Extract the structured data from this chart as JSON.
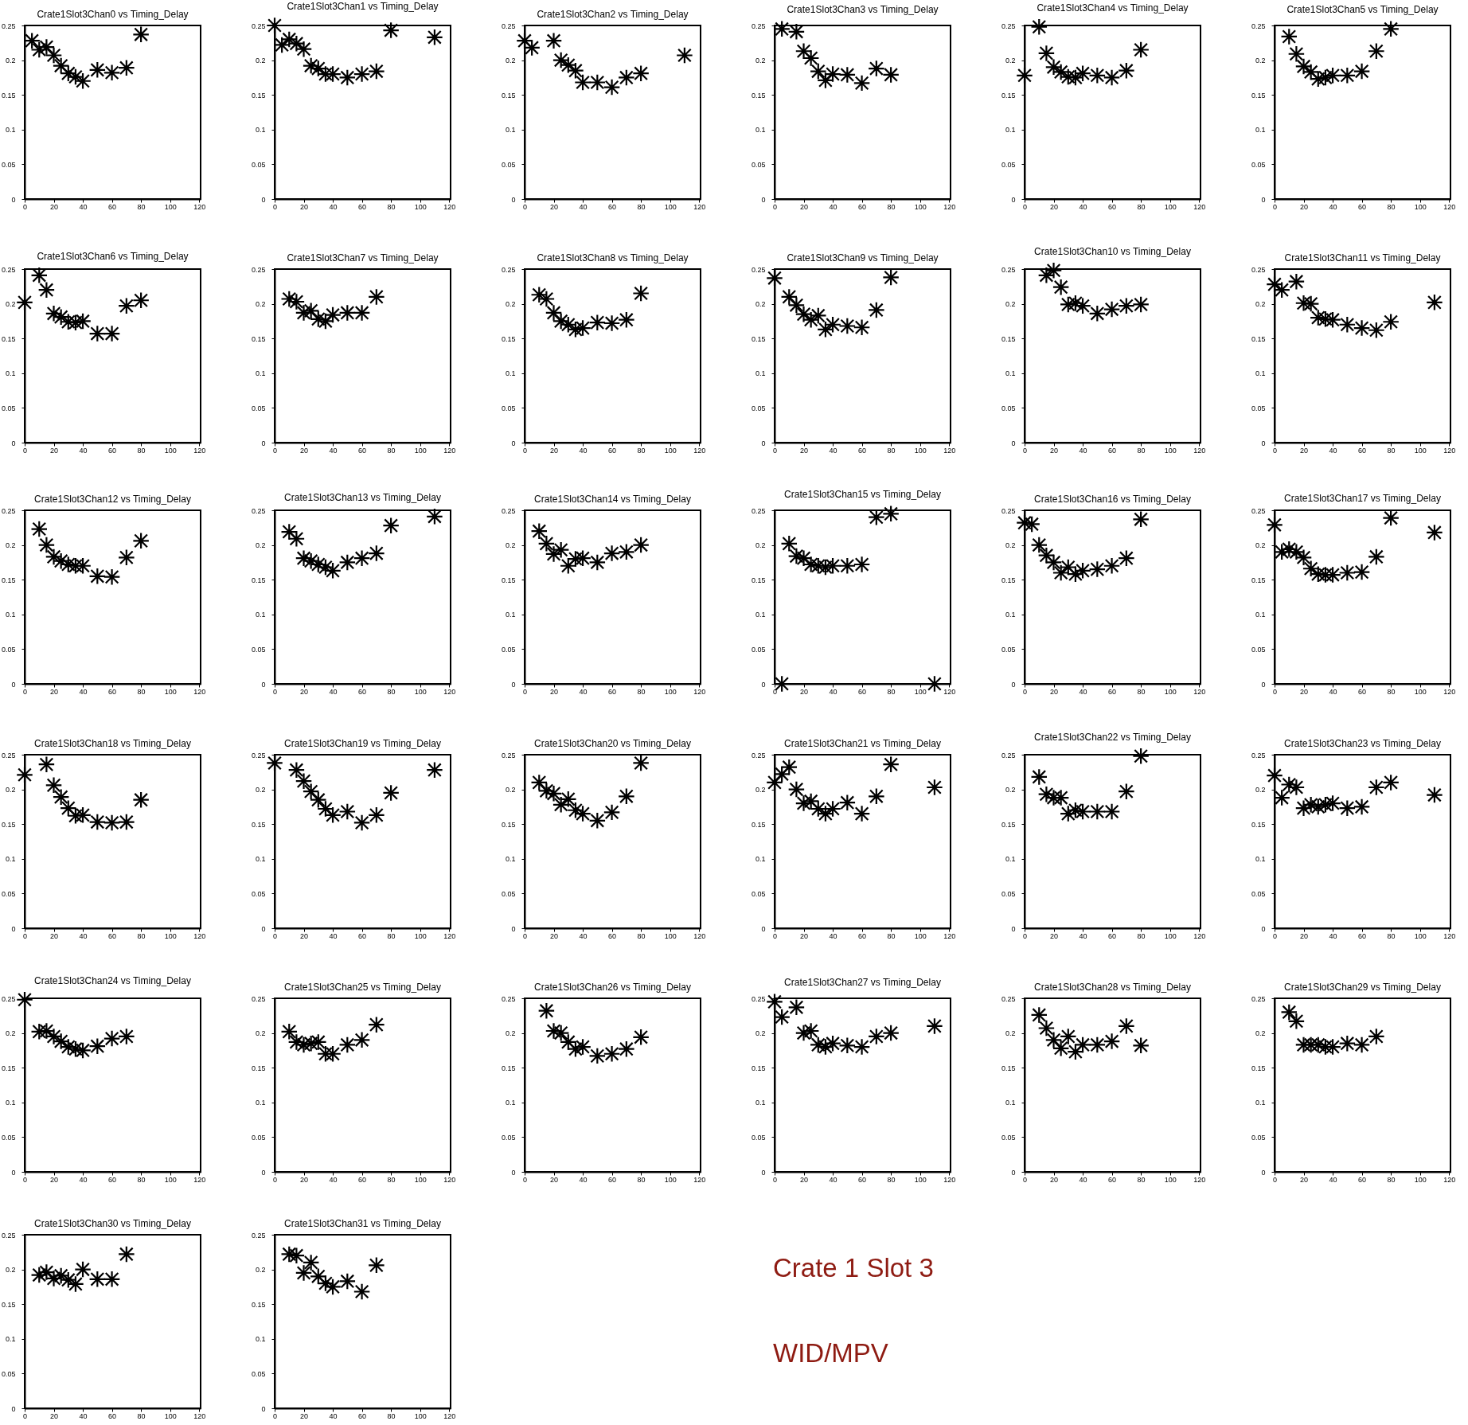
{
  "chart_data": [
    {
      "type": "scatter",
      "title": "Crate1Slot3Chan0 vs Timing_Delay",
      "x": [
        5,
        10,
        15,
        20,
        25,
        30,
        35,
        40,
        50,
        60,
        70,
        80
      ],
      "values": [
        0.228,
        0.215,
        0.219,
        0.207,
        0.192,
        0.181,
        0.176,
        0.17,
        0.186,
        0.182,
        0.189,
        0.237
      ],
      "color": "#000000",
      "marker": "cross",
      "xlim": [
        0,
        121
      ],
      "ylim": [
        0,
        0.25
      ],
      "xticks": [
        0,
        20,
        40,
        60,
        80,
        100,
        120
      ],
      "yticks": [
        0,
        0.05,
        0.1,
        0.15,
        0.2,
        0.25
      ]
    },
    {
      "type": "scatter",
      "title": "Crate1Slot3Chan1 vs Timing_Delay",
      "x": [
        0,
        5,
        10,
        15,
        20,
        25,
        30,
        35,
        40,
        50,
        60,
        70,
        80,
        110
      ],
      "values": [
        0.25,
        0.222,
        0.23,
        0.224,
        0.216,
        0.192,
        0.188,
        0.18,
        0.18,
        0.175,
        0.18,
        0.184,
        0.243,
        0.233
      ],
      "color": "#000000",
      "marker": "cross",
      "xlim": [
        0,
        121
      ],
      "ylim": [
        0,
        0.25
      ],
      "xticks": [
        0,
        20,
        40,
        60,
        80,
        100,
        120
      ],
      "yticks": [
        0,
        0.05,
        0.1,
        0.15,
        0.2,
        0.25
      ]
    },
    {
      "type": "scatter",
      "title": "Crate1Slot3Chan2 vs Timing_Delay",
      "x": [
        0,
        5,
        20,
        25,
        30,
        35,
        40,
        50,
        60,
        70,
        80,
        110
      ],
      "values": [
        0.228,
        0.218,
        0.228,
        0.2,
        0.193,
        0.185,
        0.168,
        0.168,
        0.161,
        0.175,
        0.181,
        0.207
      ],
      "color": "#000000",
      "marker": "cross",
      "xlim": [
        0,
        121
      ],
      "ylim": [
        0,
        0.25
      ],
      "xticks": [
        0,
        20,
        40,
        60,
        80,
        100,
        120
      ],
      "yticks": [
        0,
        0.05,
        0.1,
        0.15,
        0.2,
        0.25
      ]
    },
    {
      "type": "scatter",
      "title": "Crate1Slot3Chan3 vs Timing_Delay",
      "x": [
        5,
        15,
        20,
        25,
        30,
        35,
        40,
        50,
        60,
        70,
        80
      ],
      "values": [
        0.245,
        0.241,
        0.213,
        0.203,
        0.184,
        0.171,
        0.18,
        0.179,
        0.167,
        0.188,
        0.179
      ],
      "color": "#000000",
      "marker": "cross",
      "xlim": [
        0,
        121
      ],
      "ylim": [
        0,
        0.25
      ],
      "xticks": [
        0,
        20,
        40,
        60,
        80,
        100,
        120
      ],
      "yticks": [
        0,
        0.05,
        0.1,
        0.15,
        0.2,
        0.25
      ]
    },
    {
      "type": "scatter",
      "title": "Crate1Slot3Chan4 vs Timing_Delay",
      "x": [
        0,
        10,
        15,
        20,
        25,
        30,
        35,
        40,
        50,
        60,
        70,
        80
      ],
      "values": [
        0.178,
        0.248,
        0.21,
        0.19,
        0.183,
        0.176,
        0.175,
        0.181,
        0.178,
        0.175,
        0.185,
        0.215
      ],
      "color": "#000000",
      "marker": "cross",
      "xlim": [
        0,
        121
      ],
      "ylim": [
        0,
        0.25
      ],
      "xticks": [
        0,
        20,
        40,
        60,
        80,
        100,
        120
      ],
      "yticks": [
        0,
        0.05,
        0.1,
        0.15,
        0.2,
        0.25
      ]
    },
    {
      "type": "scatter",
      "title": "Crate1Slot3Chan5 vs Timing_Delay",
      "x": [
        10,
        15,
        20,
        25,
        30,
        35,
        40,
        50,
        60,
        70,
        80
      ],
      "values": [
        0.234,
        0.209,
        0.191,
        0.183,
        0.173,
        0.175,
        0.178,
        0.178,
        0.184,
        0.213,
        0.245
      ],
      "color": "#000000",
      "marker": "cross",
      "xlim": [
        0,
        121
      ],
      "ylim": [
        0,
        0.25
      ],
      "xticks": [
        0,
        20,
        40,
        60,
        80,
        100,
        120
      ],
      "yticks": [
        0,
        0.05,
        0.1,
        0.15,
        0.2,
        0.25
      ]
    },
    {
      "type": "scatter",
      "title": "Crate1Slot3Chan6 vs Timing_Delay",
      "x": [
        0,
        10,
        15,
        20,
        25,
        30,
        35,
        40,
        50,
        60,
        70,
        80
      ],
      "values": [
        0.202,
        0.241,
        0.22,
        0.186,
        0.181,
        0.174,
        0.173,
        0.175,
        0.157,
        0.157,
        0.197,
        0.205
      ],
      "color": "#000000",
      "marker": "cross",
      "xlim": [
        0,
        121
      ],
      "ylim": [
        0,
        0.25
      ],
      "xticks": [
        0,
        20,
        40,
        60,
        80,
        100,
        120
      ],
      "yticks": [
        0,
        0.05,
        0.1,
        0.15,
        0.2,
        0.25
      ]
    },
    {
      "type": "scatter",
      "title": "Crate1Slot3Chan7 vs Timing_Delay",
      "x": [
        10,
        15,
        20,
        25,
        30,
        35,
        40,
        50,
        60,
        70
      ],
      "values": [
        0.207,
        0.203,
        0.187,
        0.19,
        0.178,
        0.175,
        0.184,
        0.187,
        0.187,
        0.21
      ],
      "color": "#000000",
      "marker": "cross",
      "xlim": [
        0,
        121
      ],
      "ylim": [
        0,
        0.25
      ],
      "xticks": [
        0,
        20,
        40,
        60,
        80,
        100,
        120
      ],
      "yticks": [
        0,
        0.05,
        0.1,
        0.15,
        0.2,
        0.25
      ]
    },
    {
      "type": "scatter",
      "title": "Crate1Slot3Chan8 vs Timing_Delay",
      "x": [
        10,
        15,
        20,
        25,
        30,
        35,
        40,
        50,
        60,
        70,
        80
      ],
      "values": [
        0.213,
        0.207,
        0.187,
        0.175,
        0.17,
        0.163,
        0.165,
        0.173,
        0.172,
        0.177,
        0.215
      ],
      "color": "#000000",
      "marker": "cross",
      "xlim": [
        0,
        121
      ],
      "ylim": [
        0,
        0.25
      ],
      "xticks": [
        0,
        20,
        40,
        60,
        80,
        100,
        120
      ],
      "yticks": [
        0,
        0.05,
        0.1,
        0.15,
        0.2,
        0.25
      ]
    },
    {
      "type": "scatter",
      "title": "Crate1Slot3Chan9 vs Timing_Delay",
      "x": [
        0,
        10,
        15,
        20,
        25,
        30,
        35,
        40,
        50,
        60,
        70,
        80
      ],
      "values": [
        0.237,
        0.21,
        0.198,
        0.185,
        0.177,
        0.183,
        0.163,
        0.17,
        0.168,
        0.166,
        0.191,
        0.238
      ],
      "color": "#000000",
      "marker": "cross",
      "xlim": [
        0,
        121
      ],
      "ylim": [
        0,
        0.25
      ],
      "xticks": [
        0,
        20,
        40,
        60,
        80,
        100,
        120
      ],
      "yticks": [
        0,
        0.05,
        0.1,
        0.15,
        0.2,
        0.25
      ]
    },
    {
      "type": "scatter",
      "title": "Crate1Slot3Chan10 vs Timing_Delay",
      "x": [
        15,
        20,
        25,
        30,
        35,
        40,
        50,
        60,
        70,
        80
      ],
      "values": [
        0.241,
        0.248,
        0.224,
        0.199,
        0.201,
        0.197,
        0.186,
        0.192,
        0.197,
        0.199
      ],
      "color": "#000000",
      "marker": "cross",
      "xlim": [
        0,
        121
      ],
      "ylim": [
        0,
        0.25
      ],
      "xticks": [
        0,
        20,
        40,
        60,
        80,
        100,
        120
      ],
      "yticks": [
        0,
        0.05,
        0.1,
        0.15,
        0.2,
        0.25
      ]
    },
    {
      "type": "scatter",
      "title": "Crate1Slot3Chan11 vs Timing_Delay",
      "x": [
        0,
        5,
        15,
        20,
        25,
        30,
        35,
        40,
        50,
        60,
        70,
        80,
        110
      ],
      "values": [
        0.228,
        0.22,
        0.232,
        0.201,
        0.2,
        0.18,
        0.178,
        0.177,
        0.17,
        0.165,
        0.162,
        0.174,
        0.202
      ],
      "color": "#000000",
      "marker": "cross",
      "xlim": [
        0,
        121
      ],
      "ylim": [
        0,
        0.25
      ],
      "xticks": [
        0,
        20,
        40,
        60,
        80,
        100,
        120
      ],
      "yticks": [
        0,
        0.05,
        0.1,
        0.15,
        0.2,
        0.25
      ]
    },
    {
      "type": "scatter",
      "title": "Crate1Slot3Chan12 vs Timing_Delay",
      "x": [
        10,
        15,
        20,
        25,
        30,
        35,
        40,
        50,
        60,
        70,
        80
      ],
      "values": [
        0.223,
        0.2,
        0.183,
        0.177,
        0.172,
        0.17,
        0.17,
        0.155,
        0.154,
        0.182,
        0.206
      ],
      "color": "#000000",
      "marker": "cross",
      "xlim": [
        0,
        121
      ],
      "ylim": [
        0,
        0.25
      ],
      "xticks": [
        0,
        20,
        40,
        60,
        80,
        100,
        120
      ],
      "yticks": [
        0,
        0.05,
        0.1,
        0.15,
        0.2,
        0.25
      ]
    },
    {
      "type": "scatter",
      "title": "Crate1Slot3Chan13 vs Timing_Delay",
      "x": [
        10,
        15,
        20,
        25,
        30,
        35,
        40,
        50,
        60,
        70,
        80,
        110
      ],
      "values": [
        0.219,
        0.209,
        0.181,
        0.177,
        0.172,
        0.168,
        0.163,
        0.175,
        0.181,
        0.188,
        0.228,
        0.241
      ],
      "color": "#000000",
      "marker": "cross",
      "xlim": [
        0,
        121
      ],
      "ylim": [
        0,
        0.25
      ],
      "xticks": [
        0,
        20,
        40,
        60,
        80,
        100,
        120
      ],
      "yticks": [
        0,
        0.05,
        0.1,
        0.15,
        0.2,
        0.25
      ]
    },
    {
      "type": "scatter",
      "title": "Crate1Slot3Chan14 vs Timing_Delay",
      "x": [
        10,
        15,
        20,
        25,
        30,
        35,
        40,
        50,
        60,
        70,
        80
      ],
      "values": [
        0.22,
        0.202,
        0.187,
        0.193,
        0.17,
        0.18,
        0.181,
        0.175,
        0.188,
        0.19,
        0.2
      ],
      "color": "#000000",
      "marker": "cross",
      "xlim": [
        0,
        121
      ],
      "ylim": [
        0,
        0.25
      ],
      "xticks": [
        0,
        20,
        40,
        60,
        80,
        100,
        120
      ],
      "yticks": [
        0,
        0.05,
        0.1,
        0.15,
        0.2,
        0.25
      ]
    },
    {
      "type": "scatter",
      "title": "Crate1Slot3Chan15 vs Timing_Delay",
      "x": [
        5,
        10,
        15,
        20,
        25,
        30,
        35,
        40,
        50,
        60,
        70,
        80,
        110
      ],
      "values": [
        0,
        0.202,
        0.184,
        0.181,
        0.172,
        0.17,
        0.168,
        0.17,
        0.17,
        0.172,
        0.24,
        0.245,
        0
      ],
      "color": "#000000",
      "marker": "cross",
      "xlim": [
        0,
        121
      ],
      "ylim": [
        0,
        0.25
      ],
      "xticks": [
        0,
        20,
        40,
        60,
        80,
        100,
        120
      ],
      "yticks": [
        0,
        0.05,
        0.1,
        0.15,
        0.2,
        0.25
      ]
    },
    {
      "type": "scatter",
      "title": "Crate1Slot3Chan16 vs Timing_Delay",
      "x": [
        0,
        5,
        10,
        15,
        20,
        25,
        30,
        35,
        40,
        50,
        60,
        70,
        80
      ],
      "values": [
        0.232,
        0.23,
        0.2,
        0.185,
        0.175,
        0.16,
        0.168,
        0.158,
        0.163,
        0.165,
        0.17,
        0.181,
        0.237
      ],
      "color": "#000000",
      "marker": "cross",
      "xlim": [
        0,
        121
      ],
      "ylim": [
        0,
        0.25
      ],
      "xticks": [
        0,
        20,
        40,
        60,
        80,
        100,
        120
      ],
      "yticks": [
        0,
        0.05,
        0.1,
        0.15,
        0.2,
        0.25
      ]
    },
    {
      "type": "scatter",
      "title": "Crate1Slot3Chan17 vs Timing_Delay",
      "x": [
        0,
        5,
        10,
        15,
        20,
        25,
        30,
        35,
        40,
        50,
        60,
        70,
        80,
        110
      ],
      "values": [
        0.229,
        0.19,
        0.194,
        0.19,
        0.182,
        0.166,
        0.158,
        0.157,
        0.157,
        0.16,
        0.161,
        0.183,
        0.239,
        0.218
      ],
      "color": "#000000",
      "marker": "cross",
      "xlim": [
        0,
        121
      ],
      "ylim": [
        0,
        0.25
      ],
      "xticks": [
        0,
        20,
        40,
        60,
        80,
        100,
        120
      ],
      "yticks": [
        0,
        0.05,
        0.1,
        0.15,
        0.2,
        0.25
      ]
    },
    {
      "type": "scatter",
      "title": "Crate1Slot3Chan18 vs Timing_Delay",
      "x": [
        0,
        15,
        20,
        25,
        30,
        35,
        40,
        50,
        60,
        70,
        80
      ],
      "values": [
        0.221,
        0.236,
        0.206,
        0.189,
        0.173,
        0.162,
        0.163,
        0.153,
        0.152,
        0.153,
        0.185
      ],
      "color": "#000000",
      "marker": "cross",
      "xlim": [
        0,
        121
      ],
      "ylim": [
        0,
        0.25
      ],
      "xticks": [
        0,
        20,
        40,
        60,
        80,
        100,
        120
      ],
      "yticks": [
        0,
        0.05,
        0.1,
        0.15,
        0.2,
        0.25
      ]
    },
    {
      "type": "scatter",
      "title": "Crate1Slot3Chan19 vs Timing_Delay",
      "x": [
        0,
        15,
        20,
        25,
        30,
        35,
        40,
        50,
        60,
        70,
        80,
        110
      ],
      "values": [
        0.238,
        0.228,
        0.212,
        0.197,
        0.185,
        0.172,
        0.163,
        0.168,
        0.152,
        0.163,
        0.195,
        0.228
      ],
      "color": "#000000",
      "marker": "cross",
      "xlim": [
        0,
        121
      ],
      "ylim": [
        0,
        0.25
      ],
      "xticks": [
        0,
        20,
        40,
        60,
        80,
        100,
        120
      ],
      "yticks": [
        0,
        0.05,
        0.1,
        0.15,
        0.2,
        0.25
      ]
    },
    {
      "type": "scatter",
      "title": "Crate1Slot3Chan20 vs Timing_Delay",
      "x": [
        10,
        15,
        20,
        25,
        30,
        35,
        40,
        50,
        60,
        70,
        80
      ],
      "values": [
        0.21,
        0.198,
        0.194,
        0.178,
        0.186,
        0.17,
        0.165,
        0.155,
        0.167,
        0.19,
        0.238
      ],
      "color": "#000000",
      "marker": "cross",
      "xlim": [
        0,
        121
      ],
      "ylim": [
        0,
        0.25
      ],
      "xticks": [
        0,
        20,
        40,
        60,
        80,
        100,
        120
      ],
      "yticks": [
        0,
        0.05,
        0.1,
        0.15,
        0.2,
        0.25
      ]
    },
    {
      "type": "scatter",
      "title": "Crate1Slot3Chan21 vs Timing_Delay",
      "x": [
        0,
        5,
        10,
        15,
        20,
        25,
        30,
        35,
        40,
        50,
        60,
        70,
        80,
        110
      ],
      "values": [
        0.21,
        0.222,
        0.232,
        0.2,
        0.18,
        0.183,
        0.172,
        0.165,
        0.172,
        0.181,
        0.165,
        0.19,
        0.236,
        0.203
      ],
      "color": "#000000",
      "marker": "cross",
      "xlim": [
        0,
        121
      ],
      "ylim": [
        0,
        0.25
      ],
      "xticks": [
        0,
        20,
        40,
        60,
        80,
        100,
        120
      ],
      "yticks": [
        0,
        0.05,
        0.1,
        0.15,
        0.2,
        0.25
      ]
    },
    {
      "type": "scatter",
      "title": "Crate1Slot3Chan22 vs Timing_Delay",
      "x": [
        10,
        15,
        20,
        25,
        30,
        35,
        40,
        50,
        60,
        70,
        80
      ],
      "values": [
        0.218,
        0.193,
        0.188,
        0.188,
        0.165,
        0.17,
        0.168,
        0.168,
        0.168,
        0.197,
        0.248
      ],
      "color": "#000000",
      "marker": "cross",
      "xlim": [
        0,
        121
      ],
      "ylim": [
        0,
        0.25
      ],
      "xticks": [
        0,
        20,
        40,
        60,
        80,
        100,
        120
      ],
      "yticks": [
        0,
        0.05,
        0.1,
        0.15,
        0.2,
        0.25
      ]
    },
    {
      "type": "scatter",
      "title": "Crate1Slot3Chan23 vs Timing_Delay",
      "x": [
        0,
        5,
        10,
        15,
        20,
        25,
        30,
        35,
        40,
        50,
        60,
        70,
        80,
        110
      ],
      "values": [
        0.22,
        0.188,
        0.207,
        0.203,
        0.173,
        0.178,
        0.175,
        0.178,
        0.18,
        0.173,
        0.175,
        0.203,
        0.21,
        0.192
      ],
      "color": "#000000",
      "marker": "cross",
      "xlim": [
        0,
        121
      ],
      "ylim": [
        0,
        0.25
      ],
      "xticks": [
        0,
        20,
        40,
        60,
        80,
        100,
        120
      ],
      "yticks": [
        0,
        0.05,
        0.1,
        0.15,
        0.2,
        0.25
      ]
    },
    {
      "type": "scatter",
      "title": "Crate1Slot3Chan24 vs Timing_Delay",
      "x": [
        0,
        10,
        15,
        20,
        25,
        30,
        35,
        40,
        50,
        60,
        70
      ],
      "values": [
        0.248,
        0.202,
        0.203,
        0.195,
        0.188,
        0.18,
        0.177,
        0.175,
        0.181,
        0.192,
        0.195
      ],
      "color": "#000000",
      "marker": "cross",
      "xlim": [
        0,
        121
      ],
      "ylim": [
        0,
        0.25
      ],
      "xticks": [
        0,
        20,
        40,
        60,
        80,
        100,
        120
      ],
      "yticks": [
        0,
        0.05,
        0.1,
        0.15,
        0.2,
        0.25
      ]
    },
    {
      "type": "scatter",
      "title": "Crate1Slot3Chan25 vs Timing_Delay",
      "x": [
        10,
        15,
        20,
        25,
        30,
        35,
        40,
        50,
        60,
        70
      ],
      "values": [
        0.202,
        0.187,
        0.183,
        0.185,
        0.187,
        0.17,
        0.17,
        0.183,
        0.19,
        0.212
      ],
      "color": "#000000",
      "marker": "cross",
      "xlim": [
        0,
        121
      ],
      "ylim": [
        0,
        0.25
      ],
      "xticks": [
        0,
        20,
        40,
        60,
        80,
        100,
        120
      ],
      "yticks": [
        0,
        0.05,
        0.1,
        0.15,
        0.2,
        0.25
      ]
    },
    {
      "type": "scatter",
      "title": "Crate1Slot3Chan26 vs Timing_Delay",
      "x": [
        15,
        20,
        25,
        30,
        35,
        40,
        50,
        60,
        70,
        80
      ],
      "values": [
        0.232,
        0.203,
        0.2,
        0.187,
        0.177,
        0.18,
        0.167,
        0.17,
        0.177,
        0.194
      ],
      "color": "#000000",
      "marker": "cross",
      "xlim": [
        0,
        121
      ],
      "ylim": [
        0,
        0.25
      ],
      "xticks": [
        0,
        20,
        40,
        60,
        80,
        100,
        120
      ],
      "yticks": [
        0,
        0.05,
        0.1,
        0.15,
        0.2,
        0.25
      ]
    },
    {
      "type": "scatter",
      "title": "Crate1Slot3Chan27 vs Timing_Delay",
      "x": [
        0,
        5,
        15,
        20,
        25,
        30,
        35,
        40,
        50,
        60,
        70,
        80,
        110
      ],
      "values": [
        0.245,
        0.223,
        0.237,
        0.2,
        0.203,
        0.183,
        0.18,
        0.185,
        0.182,
        0.18,
        0.195,
        0.2,
        0.21
      ],
      "color": "#000000",
      "marker": "cross",
      "xlim": [
        0,
        121
      ],
      "ylim": [
        0,
        0.25
      ],
      "xticks": [
        0,
        20,
        40,
        60,
        80,
        100,
        120
      ],
      "yticks": [
        0,
        0.05,
        0.1,
        0.15,
        0.2,
        0.25
      ]
    },
    {
      "type": "scatter",
      "title": "Crate1Slot3Chan28 vs Timing_Delay",
      "x": [
        10,
        15,
        20,
        25,
        30,
        35,
        40,
        50,
        60,
        70,
        80
      ],
      "values": [
        0.226,
        0.207,
        0.19,
        0.178,
        0.195,
        0.173,
        0.183,
        0.183,
        0.188,
        0.21,
        0.182
      ],
      "color": "#000000",
      "marker": "cross",
      "xlim": [
        0,
        121
      ],
      "ylim": [
        0,
        0.25
      ],
      "xticks": [
        0,
        20,
        40,
        60,
        80,
        100,
        120
      ],
      "yticks": [
        0,
        0.05,
        0.1,
        0.15,
        0.2,
        0.25
      ]
    },
    {
      "type": "scatter",
      "title": "Crate1Slot3Chan29 vs Timing_Delay",
      "x": [
        10,
        15,
        20,
        25,
        30,
        35,
        40,
        50,
        60,
        70
      ],
      "values": [
        0.23,
        0.217,
        0.183,
        0.183,
        0.183,
        0.18,
        0.18,
        0.185,
        0.183,
        0.195
      ],
      "color": "#000000",
      "marker": "cross",
      "xlim": [
        0,
        121
      ],
      "ylim": [
        0,
        0.25
      ],
      "xticks": [
        0,
        20,
        40,
        60,
        80,
        100,
        120
      ],
      "yticks": [
        0,
        0.05,
        0.1,
        0.15,
        0.2,
        0.25
      ]
    },
    {
      "type": "scatter",
      "title": "Crate1Slot3Chan30 vs Timing_Delay",
      "x": [
        10,
        15,
        20,
        25,
        30,
        35,
        40,
        50,
        60,
        70
      ],
      "values": [
        0.192,
        0.196,
        0.187,
        0.191,
        0.185,
        0.179,
        0.2,
        0.186,
        0.186,
        0.222
      ],
      "color": "#000000",
      "marker": "cross",
      "xlim": [
        0,
        121
      ],
      "ylim": [
        0,
        0.25
      ],
      "xticks": [
        0,
        20,
        40,
        60,
        80,
        100,
        120
      ],
      "yticks": [
        0,
        0.05,
        0.1,
        0.15,
        0.2,
        0.25
      ]
    },
    {
      "type": "scatter",
      "title": "Crate1Slot3Chan31 vs Timing_Delay",
      "x": [
        10,
        15,
        20,
        25,
        30,
        35,
        40,
        50,
        60,
        70
      ],
      "values": [
        0.222,
        0.22,
        0.195,
        0.21,
        0.19,
        0.18,
        0.175,
        0.183,
        0.168,
        0.206
      ],
      "color": "#000000",
      "marker": "cross",
      "xlim": [
        0,
        121
      ],
      "ylim": [
        0,
        0.25
      ],
      "xticks": [
        0,
        20,
        40,
        60,
        80,
        100,
        120
      ],
      "yticks": [
        0,
        0.05,
        0.1,
        0.15,
        0.2,
        0.25
      ]
    },
    {
      "type": "other",
      "annotations": [
        "Crate 1 Slot 3",
        "WID/MPV"
      ],
      "color": "#8e1b12"
    }
  ]
}
